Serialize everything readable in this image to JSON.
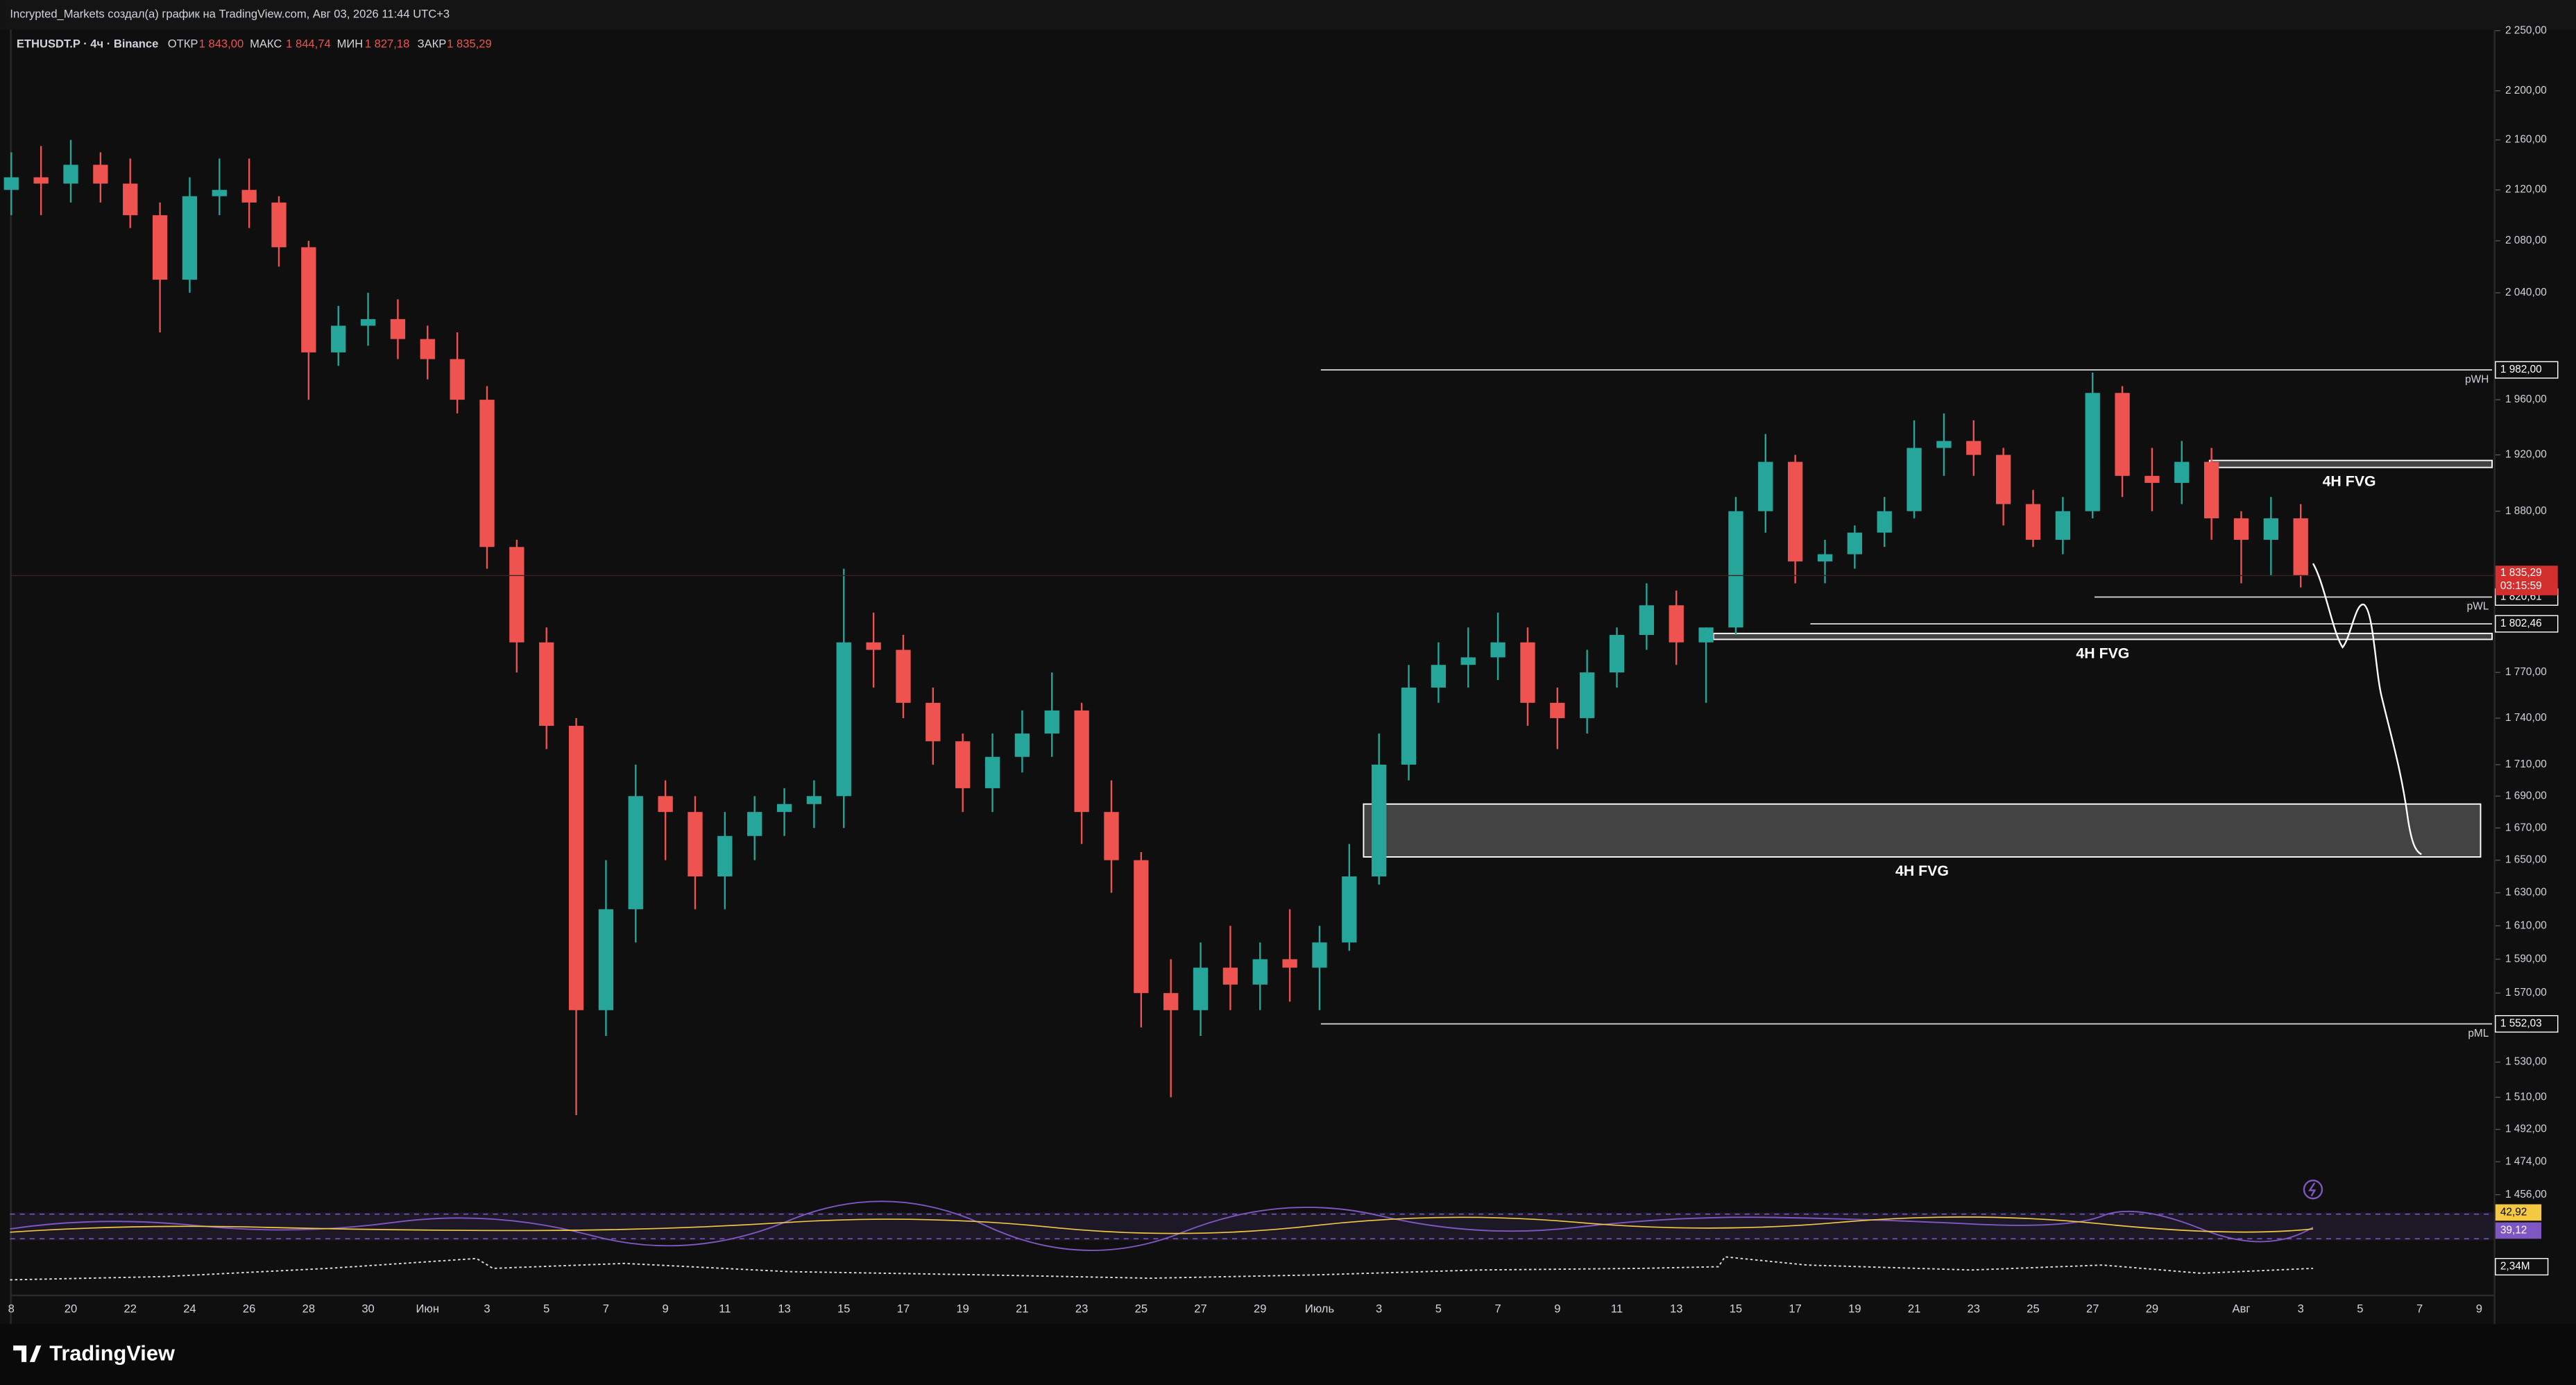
{
  "header": {
    "attribution": "Incrypted_Markets создал(а) график на TradingView.com, Авг 03, 2026 11:44 UTC+3"
  },
  "legend": {
    "symbol": "ETHUSDT.P · 4ч · Binance",
    "fields": [
      {
        "name": "ОТКР",
        "value": {
          "value": 1843,
          "label": "1 843,00"
        }
      },
      {
        "name": "МАКС",
        "value": {
          "value": 1844.74,
          "label": "1 844,74"
        }
      },
      {
        "name": "МИН",
        "value": {
          "value": 1827.18,
          "label": "1 827,18"
        }
      },
      {
        "name": "ЗАКР",
        "value": {
          "value": 1835.29,
          "label": "1 835,29"
        }
      }
    ]
  },
  "chart_data": {
    "type": "candlestick",
    "log_scale": true,
    "up_color": "#26a69a",
    "down_color": "#ef5350",
    "categories": [
      "8",
      null,
      "20",
      null,
      "22",
      null,
      "24",
      null,
      "26",
      null,
      "28",
      null,
      "30",
      null,
      "Июн",
      null,
      "3",
      null,
      "5",
      null,
      "7",
      null,
      "9",
      null,
      "11",
      null,
      "13",
      null,
      "15",
      null,
      "17",
      null,
      "19",
      null,
      "21",
      null,
      "23",
      null,
      "25",
      null,
      "27",
      null,
      "29",
      null,
      "Июль",
      null,
      "3",
      null,
      "5",
      null,
      "7",
      null,
      "9",
      null,
      "11",
      null,
      "13",
      null,
      "15",
      null,
      "17",
      null,
      "19",
      null,
      "21",
      null,
      "23",
      null,
      "25",
      null,
      "27",
      null,
      "29",
      null,
      null,
      "Авг",
      null,
      "3",
      null,
      "5",
      null,
      "7",
      null,
      "9"
    ],
    "open": [
      2120,
      2130,
      2125,
      2140,
      2125,
      2100,
      2050,
      2115,
      2120,
      2110,
      2075,
      1995,
      2015,
      2020,
      2005,
      1990,
      1960,
      1855,
      1790,
      1735,
      1560,
      1620,
      1690,
      1680,
      1640,
      1665,
      1680,
      1685,
      1690,
      1790,
      1785,
      1750,
      1725,
      1695,
      1715,
      1730,
      1745,
      1680,
      1650,
      1570,
      1560,
      1585,
      1575,
      1590,
      1585,
      1600,
      1640,
      1710,
      1760,
      1775,
      1780,
      1790,
      1750,
      1740,
      1770,
      1795,
      1815,
      1790,
      1800,
      1880,
      1915,
      1845,
      1850,
      1865,
      1880,
      1925,
      1930,
      1920,
      1885,
      1860,
      1880,
      1965,
      1905,
      1900,
      1915,
      1875,
      1860,
      1875,
      null,
      null,
      null,
      null,
      null,
      null
    ],
    "high": [
      2150,
      2155,
      2160,
      2150,
      2145,
      2110,
      2130,
      2145,
      2145,
      2115,
      2080,
      2030,
      2040,
      2035,
      2015,
      2010,
      1970,
      1860,
      1800,
      1740,
      1650,
      1710,
      1700,
      1690,
      1680,
      1690,
      1695,
      1700,
      1840,
      1810,
      1795,
      1760,
      1730,
      1730,
      1745,
      1770,
      1750,
      1700,
      1655,
      1590,
      1600,
      1610,
      1600,
      1620,
      1610,
      1660,
      1730,
      1775,
      1790,
      1800,
      1810,
      1800,
      1760,
      1785,
      1800,
      1830,
      1825,
      1800,
      1890,
      1935,
      1920,
      1860,
      1870,
      1890,
      1945,
      1950,
      1945,
      1925,
      1895,
      1890,
      1980,
      1970,
      1925,
      1930,
      1925,
      1880,
      1890,
      1885,
      null,
      null,
      null,
      null,
      null,
      null
    ],
    "low": [
      2100,
      2100,
      2110,
      2110,
      2090,
      2010,
      2040,
      2100,
      2090,
      2060,
      1960,
      1985,
      2000,
      1990,
      1975,
      1950,
      1840,
      1770,
      1720,
      1500,
      1545,
      1600,
      1650,
      1620,
      1620,
      1650,
      1665,
      1670,
      1670,
      1760,
      1740,
      1710,
      1680,
      1680,
      1705,
      1715,
      1660,
      1630,
      1550,
      1510,
      1545,
      1560,
      1560,
      1565,
      1560,
      1595,
      1635,
      1700,
      1750,
      1760,
      1765,
      1735,
      1720,
      1730,
      1760,
      1785,
      1775,
      1750,
      1795,
      1865,
      1830,
      1830,
      1840,
      1855,
      1875,
      1905,
      1905,
      1870,
      1855,
      1850,
      1875,
      1890,
      1880,
      1885,
      1860,
      1830,
      1835,
      1827.18,
      null,
      null,
      null,
      null,
      null,
      null
    ],
    "close": [
      2130,
      2125,
      2140,
      2125,
      2100,
      2050,
      2115,
      2120,
      2110,
      2075,
      1995,
      2015,
      2020,
      2005,
      1990,
      1960,
      1855,
      1790,
      1735,
      1560,
      1620,
      1690,
      1680,
      1640,
      1665,
      1680,
      1685,
      1690,
      1790,
      1785,
      1750,
      1725,
      1695,
      1715,
      1730,
      1745,
      1680,
      1650,
      1570,
      1560,
      1585,
      1575,
      1590,
      1585,
      1600,
      1640,
      1710,
      1760,
      1775,
      1780,
      1790,
      1750,
      1740,
      1770,
      1795,
      1815,
      1790,
      1800,
      1880,
      1915,
      1845,
      1850,
      1865,
      1880,
      1925,
      1930,
      1920,
      1885,
      1860,
      1880,
      1965,
      1905,
      1900,
      1915,
      1875,
      1860,
      1875,
      1835.29,
      null,
      null,
      null,
      null,
      null,
      null
    ],
    "ylim": [
      1449,
      2276
    ],
    "yticks": [
      {
        "value": 2250,
        "label": "2 250,00"
      },
      {
        "value": 2200,
        "label": "2 200,00"
      },
      {
        "value": 2160,
        "label": "2 160,00"
      },
      {
        "value": 2120,
        "label": "2 120,00"
      },
      {
        "value": 2080,
        "label": "2 080,00"
      },
      {
        "value": 2040,
        "label": "2 040,00"
      },
      {
        "value": 1960,
        "label": "1 960,00"
      },
      {
        "value": 1920,
        "label": "1 920,00"
      },
      {
        "value": 1880,
        "label": "1 880,00"
      },
      {
        "value": 1770,
        "label": "1 770,00"
      },
      {
        "value": 1740,
        "label": "1 740,00"
      },
      {
        "value": 1710,
        "label": "1 710,00"
      },
      {
        "value": 1690,
        "label": "1 690,00"
      },
      {
        "value": 1670,
        "label": "1 670,00"
      },
      {
        "value": 1650,
        "label": "1 650,00"
      },
      {
        "value": 1630,
        "label": "1 630,00"
      },
      {
        "value": 1610,
        "label": "1 610,00"
      },
      {
        "value": 1590,
        "label": "1 590,00"
      },
      {
        "value": 1570,
        "label": "1 570,00"
      },
      {
        "value": 1530,
        "label": "1 530,00"
      },
      {
        "value": 1510,
        "label": "1 510,00"
      },
      {
        "value": 1492,
        "label": "1 492,00"
      },
      {
        "value": 1474,
        "label": "1 474,00"
      },
      {
        "value": 1456,
        "label": "1 456,00"
      }
    ],
    "levels": [
      {
        "name": "pWH",
        "value": {
          "value": 1982,
          "label": "1 982,00"
        }
      },
      {
        "name": "pWL",
        "value": {
          "value": 1820.61,
          "label": "1 820,61"
        }
      },
      {
        "value": {
          "value": 1802.46,
          "label": "1 802,46"
        }
      },
      {
        "name": "pML",
        "value": {
          "value": 1552.03,
          "label": "1 552,03"
        }
      }
    ],
    "last_price": {
      "value": {
        "value": 1835.29,
        "label": "1 835,29"
      },
      "countdown": "03:15:59"
    },
    "zones": [
      {
        "label": "4H FVG",
        "top": 1685,
        "bottom": 1652
      },
      {
        "label": "4H FVG",
        "top": 1796,
        "bottom": 1792
      },
      {
        "label": "4H FVG",
        "top": 1916,
        "bottom": 1911
      }
    ]
  },
  "rsi": {
    "values": [
      {
        "value": 42.92,
        "label": "42,92"
      },
      {
        "value": 39.12,
        "label": "39,12"
      }
    ]
  },
  "volume": {
    "value": 2340000,
    "label": "2,34M"
  },
  "footer": {
    "brand": "TradingView"
  }
}
